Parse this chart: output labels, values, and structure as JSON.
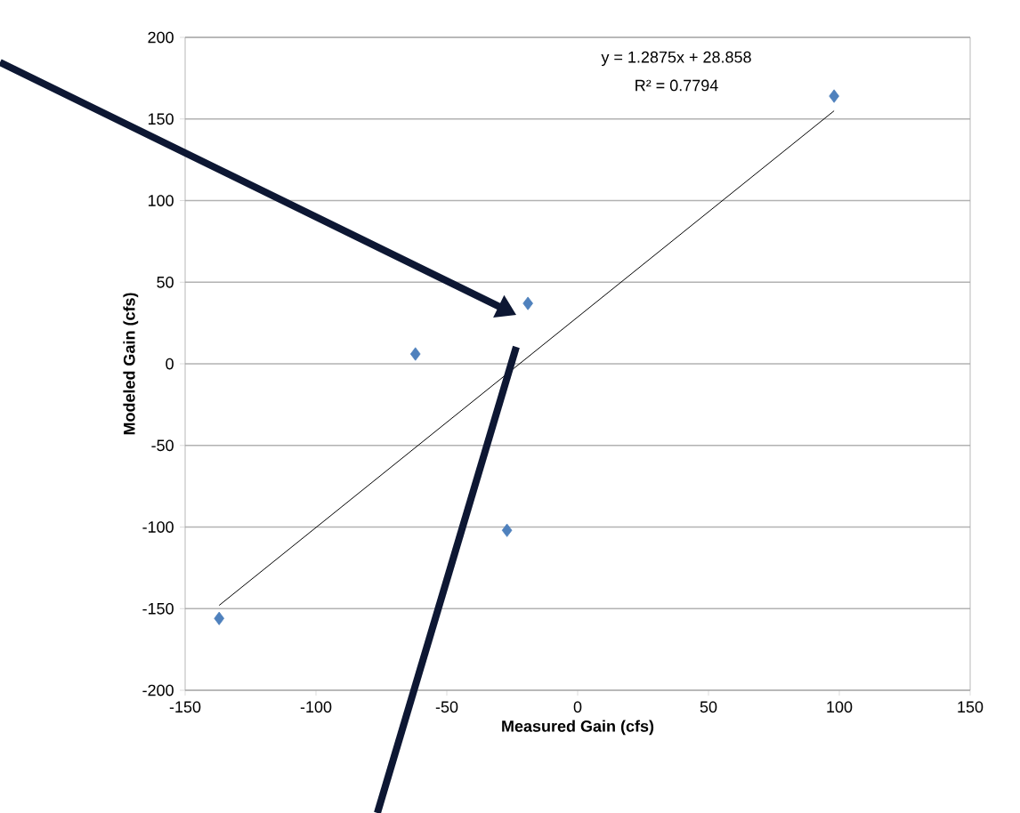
{
  "chart_data": {
    "type": "scatter",
    "xlabel": "Measured Gain  (cfs)",
    "ylabel": "Modeled Gain (cfs)",
    "series": [
      {
        "color": "#4f81bd",
        "x": [
          -137,
          -62,
          -19,
          -27,
          98
        ],
        "values": [
          -156,
          6,
          37,
          -102,
          164
        ]
      },
      {
        "type": "line",
        "color": "#000000",
        "marker": "none",
        "x": [
          -137,
          98
        ],
        "values": [
          -148,
          155
        ]
      }
    ],
    "annotations": [
      "y = 1.2875x + 28.858",
      "R² = 0.7794"
    ],
    "xlim": [
      -150,
      150
    ],
    "xticks": [
      -150,
      -100,
      -50,
      0,
      50,
      100,
      150
    ],
    "ylim": [
      -200,
      200
    ],
    "yticks": [
      -200,
      -150,
      -100,
      -50,
      0,
      50,
      100,
      150,
      200
    ],
    "grid": "y",
    "marker": "diamond"
  }
}
